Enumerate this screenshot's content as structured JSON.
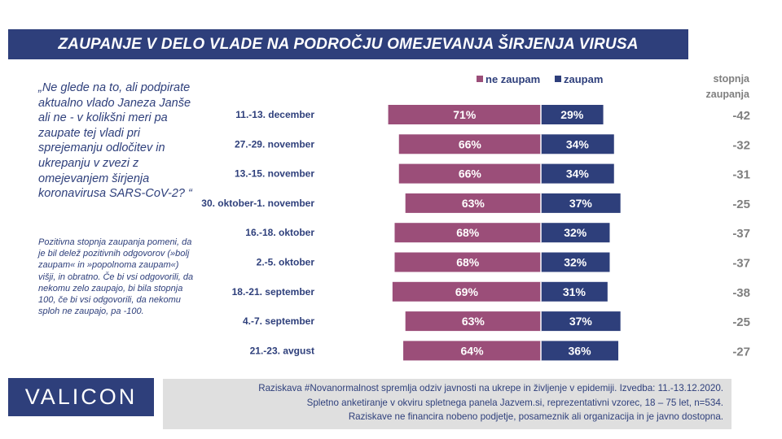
{
  "title": "ZAUPANJE V DELO VLADE NA PODROČJU OMEJEVANJA ŠIRJENJA VIRUSA",
  "question": "„Ne glede na to, ali podpirate aktualno vlado Janeza Janše ali ne - v kolikšni meri pa zaupate tej vladi pri sprejemanju odločitev in ukrepanju v zvezi z omejevanjem širjenja koronavirusa SARS-CoV-2? “",
  "note": "Pozitivna stopnja zaupanja pomeni, da je bil delež pozitivnih odgovorov (»bolj zaupam« in »popolnoma zaupam«) višji, in obratno. Če bi vsi odgovorili, da nekomu zelo zaupajo, bi bila stopnja 100, če bi vsi odgovorili, da nekomu sploh ne zaupajo, pa -100.",
  "logo": "VALICON",
  "footnote": {
    "line1": "Raziskava #Novanormalnost spremlja odziv javnosti na ukrepe in življenje v epidemiji. Izvedba: 11.-13.12.2020.",
    "line2": "Spletno anketiranje v okviru spletnega panela Jazvem.si, reprezentativni vzorec, 18 – 75 let, n=534.",
    "line3": "Raziskave ne financira nobeno podjetje, posameznik ali organizacija in je javno dostopna."
  },
  "colors": {
    "brand": "#2e3f7b",
    "ne_zaupam": "#9b4e79",
    "zaupam": "#2e3f7b",
    "trust_text": "#7f7f7f",
    "footnote_bg": "#dfdfdf"
  },
  "chart_data": {
    "type": "bar",
    "orientation": "horizontal-diverging",
    "categories": [
      "11.-13. december",
      "27.-29. november",
      "13.-15. november",
      "30. oktober-1. november",
      "16.-18. oktober",
      "2.-5. oktober",
      "18.-21. september",
      "4.-7. september",
      "21.-23. avgust"
    ],
    "series": [
      {
        "name": "ne zaupam",
        "values": [
          71,
          66,
          66,
          63,
          68,
          68,
          69,
          63,
          64
        ],
        "labels": [
          "71%",
          "66%",
          "66%",
          "63%",
          "68%",
          "68%",
          "69%",
          "63%",
          "64%"
        ]
      },
      {
        "name": "zaupam",
        "values": [
          29,
          34,
          34,
          37,
          32,
          32,
          31,
          37,
          36
        ],
        "labels": [
          "29%",
          "34%",
          "34%",
          "37%",
          "32%",
          "32%",
          "31%",
          "37%",
          "36%"
        ]
      }
    ],
    "trust_header": [
      "stopnja",
      "zaupanja"
    ],
    "trust_index": [
      "-42",
      "-32",
      "-31",
      "-25",
      "-37",
      "-37",
      "-38",
      "-25",
      "-27"
    ],
    "legend_position": "top"
  }
}
